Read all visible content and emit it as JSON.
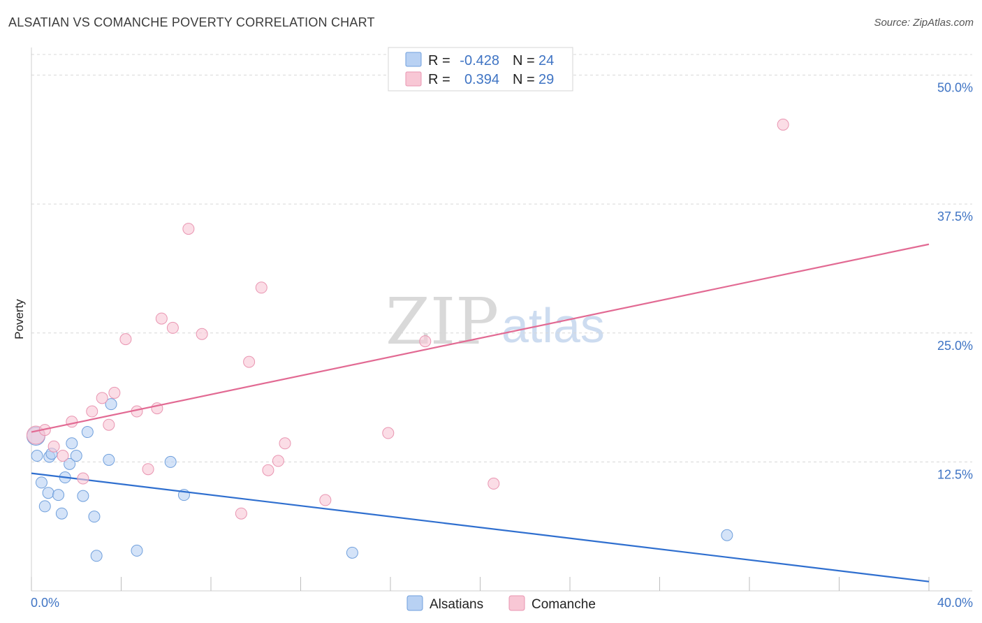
{
  "header": {
    "title": "ALSATIAN VS COMANCHE POVERTY CORRELATION CHART",
    "source": "Source: ZipAtlas.com"
  },
  "watermark": {
    "zip": "ZIP",
    "atlas": "atlas"
  },
  "colors": {
    "blue_fill": "#b8d1f3",
    "blue_stroke": "#6f9fdc",
    "blue_line": "#2f6fcf",
    "pink_fill": "#f8c7d5",
    "pink_stroke": "#e995b1",
    "pink_line": "#e26a93",
    "tick_text": "#3f74c4",
    "grid": "#d8d8d8"
  },
  "legend": {
    "rows": [
      {
        "r_label": "R =",
        "r_value": "-0.428",
        "n_label": "N =",
        "n_value": "24"
      },
      {
        "r_label": "R =",
        "r_value": "0.394",
        "n_label": "N =",
        "n_value": "29"
      }
    ]
  },
  "bottom_legend": {
    "items": [
      {
        "label": "Alsatians"
      },
      {
        "label": "Comanche"
      }
    ]
  },
  "chart_data": {
    "type": "scatter",
    "title": "ALSATIAN VS COMANCHE POVERTY CORRELATION CHART",
    "xlabel": "",
    "ylabel": "Poverty",
    "xlim": [
      0,
      40
    ],
    "ylim": [
      0,
      52
    ],
    "x_ticks_labels": [
      "0.0%",
      "40.0%"
    ],
    "y_ticks": [
      12.5,
      25.0,
      37.5,
      50.0
    ],
    "y_tick_labels": [
      "12.5%",
      "25.0%",
      "37.5%",
      "50.0%"
    ],
    "grid": true,
    "series": [
      {
        "name": "Alsatians",
        "r": -0.428,
        "n": 24,
        "trend": {
          "x": [
            0,
            40
          ],
          "y": [
            11.4,
            0.9
          ]
        },
        "points": [
          {
            "x": 0.2,
            "y": 15.0,
            "big": true
          },
          {
            "x": 0.25,
            "y": 13.1
          },
          {
            "x": 0.45,
            "y": 10.5
          },
          {
            "x": 0.6,
            "y": 8.2
          },
          {
            "x": 0.75,
            "y": 9.5
          },
          {
            "x": 0.8,
            "y": 13.0
          },
          {
            "x": 0.9,
            "y": 13.3
          },
          {
            "x": 1.2,
            "y": 9.3
          },
          {
            "x": 1.35,
            "y": 7.5
          },
          {
            "x": 1.5,
            "y": 11.0
          },
          {
            "x": 1.7,
            "y": 12.3
          },
          {
            "x": 1.8,
            "y": 14.3
          },
          {
            "x": 2.0,
            "y": 13.1
          },
          {
            "x": 2.3,
            "y": 9.2
          },
          {
            "x": 2.5,
            "y": 15.4
          },
          {
            "x": 2.8,
            "y": 7.2
          },
          {
            "x": 2.9,
            "y": 3.4
          },
          {
            "x": 3.45,
            "y": 12.7
          },
          {
            "x": 3.55,
            "y": 18.1
          },
          {
            "x": 4.7,
            "y": 3.9
          },
          {
            "x": 6.2,
            "y": 12.5
          },
          {
            "x": 6.8,
            "y": 9.3
          },
          {
            "x": 14.3,
            "y": 3.7
          },
          {
            "x": 31.0,
            "y": 5.4
          }
        ]
      },
      {
        "name": "Comanche",
        "r": 0.394,
        "n": 29,
        "trend": {
          "x": [
            0,
            40
          ],
          "y": [
            15.4,
            33.6
          ]
        },
        "points": [
          {
            "x": 0.2,
            "y": 15.1,
            "big": true
          },
          {
            "x": 0.6,
            "y": 15.6
          },
          {
            "x": 1.0,
            "y": 14.0
          },
          {
            "x": 1.4,
            "y": 13.1
          },
          {
            "x": 1.8,
            "y": 16.4
          },
          {
            "x": 2.3,
            "y": 10.9
          },
          {
            "x": 2.7,
            "y": 17.4
          },
          {
            "x": 3.15,
            "y": 18.7
          },
          {
            "x": 3.45,
            "y": 16.1
          },
          {
            "x": 3.7,
            "y": 19.2
          },
          {
            "x": 4.2,
            "y": 24.4
          },
          {
            "x": 4.7,
            "y": 17.4
          },
          {
            "x": 5.2,
            "y": 11.8
          },
          {
            "x": 5.6,
            "y": 17.7
          },
          {
            "x": 5.8,
            "y": 26.4
          },
          {
            "x": 6.3,
            "y": 25.5
          },
          {
            "x": 7.0,
            "y": 35.1
          },
          {
            "x": 7.6,
            "y": 24.9
          },
          {
            "x": 9.35,
            "y": 7.5
          },
          {
            "x": 9.7,
            "y": 22.2
          },
          {
            "x": 10.25,
            "y": 29.4
          },
          {
            "x": 10.55,
            "y": 11.7
          },
          {
            "x": 11.0,
            "y": 12.6
          },
          {
            "x": 11.3,
            "y": 14.3
          },
          {
            "x": 13.1,
            "y": 8.8
          },
          {
            "x": 15.9,
            "y": 15.3
          },
          {
            "x": 17.55,
            "y": 24.2
          },
          {
            "x": 20.6,
            "y": 10.4
          },
          {
            "x": 33.5,
            "y": 45.2
          }
        ]
      }
    ]
  }
}
